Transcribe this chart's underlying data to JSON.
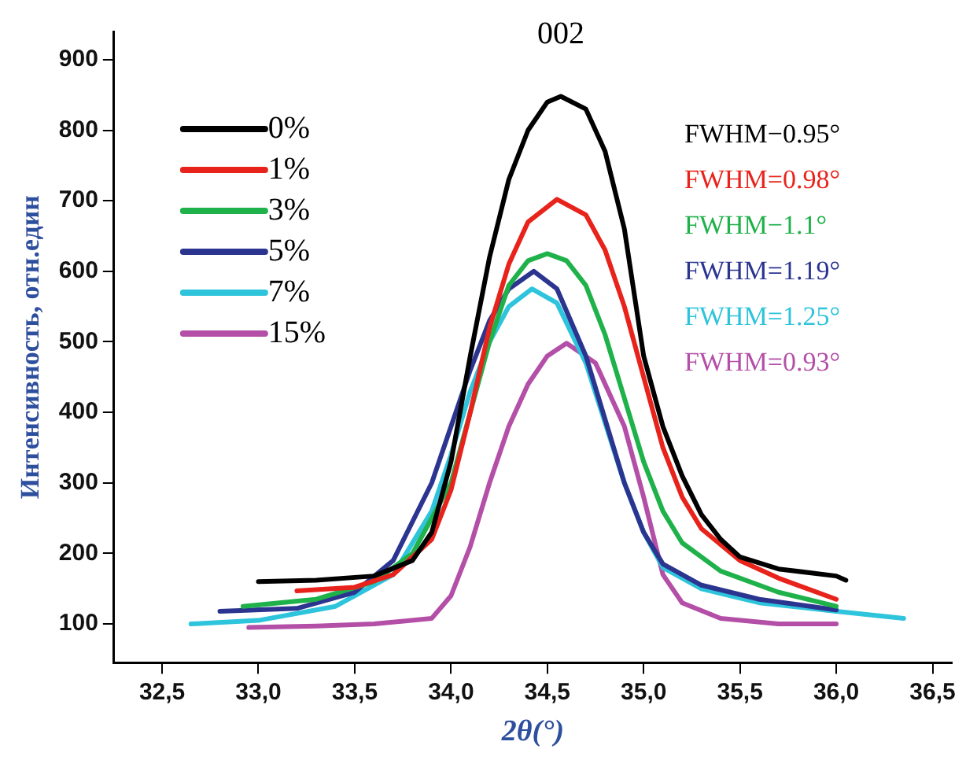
{
  "chart_data": {
    "type": "line",
    "xlabel": "2θ(°)",
    "ylabel": "Интенсивность, отн.един",
    "xlim": [
      32.25,
      36.6
    ],
    "ylim": [
      45,
      940
    ],
    "xticks": [
      {
        "value": 32.5,
        "label": "32,5"
      },
      {
        "value": 33,
        "label": "33,0"
      },
      {
        "value": 33.5,
        "label": "33,5"
      },
      {
        "value": 34,
        "label": "34,0"
      },
      {
        "value": 34.5,
        "label": "34,5"
      },
      {
        "value": 35,
        "label": "35,0"
      },
      {
        "value": 35.5,
        "label": "35,5"
      },
      {
        "value": 36,
        "label": "36,0"
      },
      {
        "value": 36.5,
        "label": "36,5"
      }
    ],
    "yticks": [
      100,
      200,
      300,
      400,
      500,
      600,
      700,
      800,
      900
    ],
    "grid": false,
    "legend": "top left",
    "marker": "none",
    "line_style": "solid",
    "annotations": [
      "002",
      "FWHM−0.95°",
      "FWHM=0.98°",
      "FWHM−1.1°",
      "FWHM=1.19°",
      "FWHM=1.25°",
      "FWHM=0.93°"
    ],
    "series": [
      {
        "name": "0%",
        "color": "#000000",
        "x": [
          33.0,
          33.3,
          33.6,
          33.8,
          33.9,
          34.0,
          34.1,
          34.2,
          34.3,
          34.4,
          34.5,
          34.57,
          34.7,
          34.8,
          34.9,
          35.0,
          35.1,
          35.2,
          35.3,
          35.4,
          35.5,
          35.7,
          36.0,
          36.05
        ],
        "values": [
          160,
          162,
          168,
          190,
          230,
          330,
          480,
          620,
          730,
          800,
          840,
          848,
          830,
          770,
          660,
          480,
          380,
          310,
          255,
          220,
          195,
          178,
          168,
          162
        ]
      },
      {
        "name": "1%",
        "color": "#e8231c",
        "x": [
          33.2,
          33.5,
          33.7,
          33.9,
          34.0,
          34.1,
          34.2,
          34.3,
          34.4,
          34.55,
          34.7,
          34.8,
          34.9,
          35.0,
          35.1,
          35.2,
          35.3,
          35.5,
          35.7,
          36.0
        ],
        "values": [
          147,
          152,
          170,
          220,
          290,
          400,
          520,
          610,
          670,
          702,
          680,
          630,
          550,
          450,
          350,
          280,
          235,
          190,
          165,
          135
        ]
      },
      {
        "name": "3%",
        "color": "#1fb14a",
        "x": [
          32.92,
          33.3,
          33.6,
          33.8,
          34.0,
          34.1,
          34.2,
          34.3,
          34.4,
          34.5,
          34.6,
          34.7,
          34.8,
          34.9,
          35.0,
          35.1,
          35.2,
          35.4,
          35.7,
          36.0
        ],
        "values": [
          125,
          135,
          160,
          200,
          300,
          400,
          500,
          580,
          615,
          625,
          615,
          580,
          510,
          420,
          330,
          260,
          215,
          175,
          145,
          125
        ]
      },
      {
        "name": "5%",
        "color": "#2b3590",
        "x": [
          32.8,
          33.2,
          33.5,
          33.7,
          33.9,
          34.0,
          34.1,
          34.2,
          34.3,
          34.43,
          34.55,
          34.7,
          34.8,
          34.9,
          35.0,
          35.1,
          35.3,
          35.6,
          36.0
        ],
        "values": [
          118,
          122,
          145,
          190,
          300,
          380,
          460,
          530,
          575,
          600,
          575,
          480,
          390,
          300,
          230,
          185,
          155,
          135,
          120
        ]
      },
      {
        "name": "7%",
        "color": "#2ec4dc",
        "x": [
          32.65,
          33.0,
          33.4,
          33.7,
          33.9,
          34.0,
          34.1,
          34.2,
          34.3,
          34.42,
          34.55,
          34.7,
          34.8,
          34.9,
          35.0,
          35.1,
          35.3,
          35.6,
          36.0,
          36.35
        ],
        "values": [
          100,
          105,
          125,
          170,
          260,
          340,
          430,
          500,
          550,
          575,
          555,
          470,
          385,
          300,
          230,
          180,
          150,
          130,
          118,
          108
        ]
      },
      {
        "name": "15%",
        "color": "#b44fa8",
        "x": [
          32.95,
          33.3,
          33.6,
          33.9,
          34.0,
          34.1,
          34.2,
          34.3,
          34.4,
          34.5,
          34.6,
          34.75,
          34.9,
          35.0,
          35.1,
          35.2,
          35.4,
          35.7,
          36.0
        ],
        "values": [
          95,
          97,
          100,
          108,
          140,
          210,
          300,
          380,
          440,
          480,
          498,
          470,
          380,
          280,
          170,
          130,
          108,
          100,
          100
        ]
      }
    ]
  }
}
